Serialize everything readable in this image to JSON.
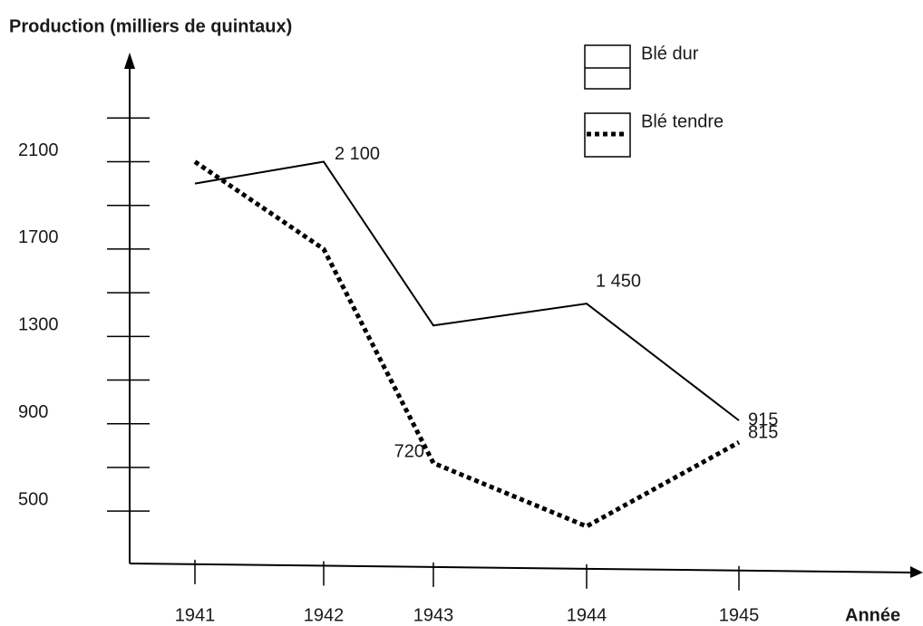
{
  "chart_data": {
    "type": "line",
    "y_label": "Production (milliers de quintaux)",
    "x_label": "Année",
    "categories": [
      "1941",
      "1942",
      "1943",
      "1944",
      "1945"
    ],
    "series": [
      {
        "name": "Blé dur",
        "color": "#000000",
        "style": "solid",
        "values": [
          2000,
          2100,
          1350,
          1450,
          915
        ],
        "value_labels": [
          null,
          "2 100",
          null,
          "1 450",
          "915"
        ]
      },
      {
        "name": "Blé tendre",
        "color": "#000000",
        "style": "dotted",
        "values": [
          2100,
          1700,
          720,
          430,
          815
        ],
        "value_labels": [
          null,
          null,
          "720",
          null,
          "815"
        ]
      }
    ],
    "ylim": [
      260,
      2600
    ],
    "yticks": [
      500,
      900,
      1300,
      1700,
      2100
    ],
    "minor_yticks": [
      700,
      1100,
      1500,
      1900,
      2300
    ]
  }
}
